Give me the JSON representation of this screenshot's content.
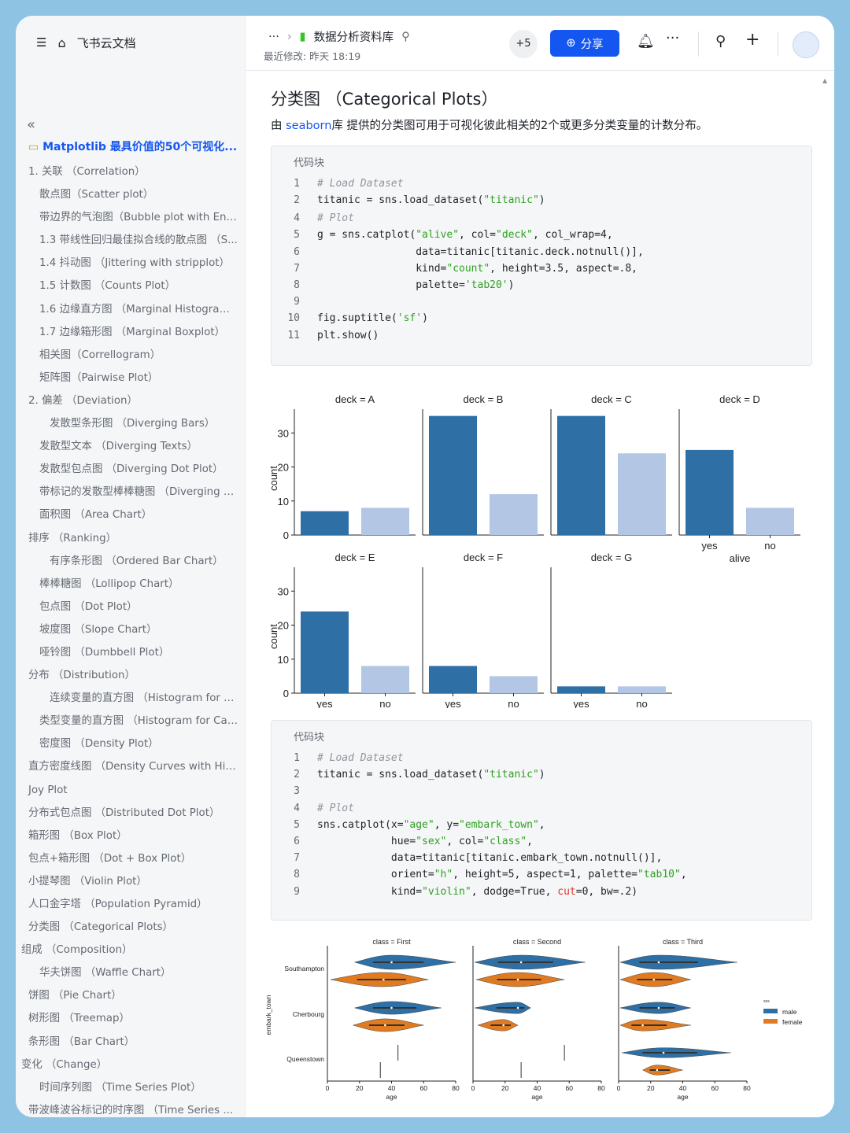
{
  "sidebar": {
    "app_title": "飞书云文档",
    "doc_title": "Matplotlib 最具价值的50个可视化...",
    "items": [
      {
        "label": "1. 关联 （Correlation）",
        "level": 1
      },
      {
        "label": "散点图（Scatter plot）",
        "level": 2
      },
      {
        "label": "带边界的气泡图（Bubble plot with Encir...",
        "level": 2
      },
      {
        "label": "1.3 带线性回归最佳拟合线的散点图 （S...",
        "level": 2
      },
      {
        "label": "1.4 抖动图 （Jittering with stripplot）",
        "level": 2
      },
      {
        "label": "1.5 计数图 （Counts Plot）",
        "level": 2
      },
      {
        "label": "1.6 边缘直方图 （Marginal Histogram）",
        "level": 2
      },
      {
        "label": "1.7 边缘箱形图 （Marginal Boxplot）",
        "level": 2
      },
      {
        "label": "相关图（Correllogram）",
        "level": 2
      },
      {
        "label": "矩阵图（Pairwise Plot）",
        "level": 2
      },
      {
        "label": "2. 偏差 （Deviation）",
        "level": 1
      },
      {
        "label": "发散型条形图 （Diverging Bars）",
        "level": 3
      },
      {
        "label": "发散型文本 （Diverging Texts）",
        "level": 2
      },
      {
        "label": "发散型包点图 （Diverging Dot Plot）",
        "level": 2
      },
      {
        "label": "带标记的发散型棒棒糖图 （Diverging Lo...",
        "level": 2
      },
      {
        "label": "面积图 （Area Chart）",
        "level": 2
      },
      {
        "label": "排序 （Ranking）",
        "level": 1
      },
      {
        "label": "有序条形图 （Ordered Bar Chart）",
        "level": 3
      },
      {
        "label": "棒棒糖图 （Lollipop Chart）",
        "level": 2
      },
      {
        "label": "包点图 （Dot Plot）",
        "level": 2
      },
      {
        "label": "坡度图 （Slope Chart）",
        "level": 2
      },
      {
        "label": "哑铃图 （Dumbbell Plot）",
        "level": 2
      },
      {
        "label": "分布 （Distribution）",
        "level": 1
      },
      {
        "label": "连续变量的直方图 （Histogram for Co...",
        "level": 3
      },
      {
        "label": "类型变量的直方图 （Histogram for Cate...",
        "level": 2
      },
      {
        "label": "密度图 （Density Plot）",
        "level": 2
      },
      {
        "label": "直方密度线图 （Density Curves with His...",
        "level": 1
      },
      {
        "label": "Joy Plot",
        "level": 1
      },
      {
        "label": "分布式包点图 （Distributed Dot Plot）",
        "level": 1
      },
      {
        "label": "箱形图 （Box Plot）",
        "level": 1
      },
      {
        "label": "包点+箱形图 （Dot + Box Plot）",
        "level": 1
      },
      {
        "label": "小提琴图 （Violin Plot）",
        "level": 1
      },
      {
        "label": "人口金字塔 （Population Pyramid）",
        "level": 1
      },
      {
        "label": "分类图 （Categorical Plots）",
        "level": 1
      },
      {
        "label": "组成 （Composition）",
        "level": 0
      },
      {
        "label": "华夫饼图 （Waffle Chart）",
        "level": 2
      },
      {
        "label": "饼图 （Pie Chart）",
        "level": 1
      },
      {
        "label": "树形图 （Treemap）",
        "level": 1
      },
      {
        "label": "条形图 （Bar Chart）",
        "level": 1
      },
      {
        "label": "变化 （Change）",
        "level": 0
      },
      {
        "label": "时间序列图 （Time Series Plot）",
        "level": 2
      },
      {
        "label": "带波峰波谷标记的时序图 （Time Series ...",
        "level": 1
      }
    ]
  },
  "header": {
    "more": "···",
    "doc_name": "数据分析资料库",
    "last_modified": "最近修改: 昨天 18:19",
    "collaborators": "+5",
    "share_label": "分享"
  },
  "content": {
    "heading": "分类图 （Categorical Plots）",
    "desc_pre": "由 ",
    "desc_link": "seaborn",
    "desc_post": "库 提供的分类图可用于可视化彼此相关的2个或更多分类变量的计数分布。",
    "code1": {
      "label": "代码块",
      "lines": [
        {
          "n": "1",
          "parts": [
            {
              "t": "# Load Dataset",
              "c": "cm"
            }
          ]
        },
        {
          "n": "2",
          "parts": [
            {
              "t": "titanic = sns.load_dataset(",
              "c": ""
            },
            {
              "t": "\"titanic\"",
              "c": "st"
            },
            {
              "t": ")",
              "c": ""
            }
          ]
        },
        {
          "n": "4",
          "parts": [
            {
              "t": "# Plot",
              "c": "cm"
            }
          ]
        },
        {
          "n": "5",
          "parts": [
            {
              "t": "g = sns.catplot(",
              "c": ""
            },
            {
              "t": "\"alive\"",
              "c": "st"
            },
            {
              "t": ", col=",
              "c": ""
            },
            {
              "t": "\"deck\"",
              "c": "st"
            },
            {
              "t": ", col_wrap=4,",
              "c": ""
            }
          ]
        },
        {
          "n": "6",
          "parts": [
            {
              "t": "                data=titanic[titanic.deck.notnull()],",
              "c": ""
            }
          ]
        },
        {
          "n": "7",
          "parts": [
            {
              "t": "                kind=",
              "c": ""
            },
            {
              "t": "\"count\"",
              "c": "st"
            },
            {
              "t": ", height=3.5, aspect=.8,",
              "c": ""
            }
          ]
        },
        {
          "n": "8",
          "parts": [
            {
              "t": "                palette=",
              "c": ""
            },
            {
              "t": "'tab20'",
              "c": "st"
            },
            {
              "t": ")",
              "c": ""
            }
          ]
        },
        {
          "n": "9",
          "parts": [
            {
              "t": "",
              "c": ""
            }
          ]
        },
        {
          "n": "10",
          "parts": [
            {
              "t": "fig.suptitle(",
              "c": ""
            },
            {
              "t": "'sf'",
              "c": "st"
            },
            {
              "t": ")",
              "c": ""
            }
          ]
        },
        {
          "n": "11",
          "parts": [
            {
              "t": "plt.show()",
              "c": ""
            }
          ]
        }
      ]
    },
    "code2": {
      "label": "代码块",
      "lines": [
        {
          "n": "1",
          "parts": [
            {
              "t": "# Load Dataset",
              "c": "cm"
            }
          ]
        },
        {
          "n": "2",
          "parts": [
            {
              "t": "titanic = sns.load_dataset(",
              "c": ""
            },
            {
              "t": "\"titanic\"",
              "c": "st"
            },
            {
              "t": ")",
              "c": ""
            }
          ]
        },
        {
          "n": "3",
          "parts": [
            {
              "t": "",
              "c": ""
            }
          ]
        },
        {
          "n": "4",
          "parts": [
            {
              "t": "# Plot",
              "c": "cm"
            }
          ]
        },
        {
          "n": "5",
          "parts": [
            {
              "t": "sns.catplot(x=",
              "c": ""
            },
            {
              "t": "\"age\"",
              "c": "st"
            },
            {
              "t": ", y=",
              "c": ""
            },
            {
              "t": "\"embark_town\"",
              "c": "st"
            },
            {
              "t": ",",
              "c": ""
            }
          ]
        },
        {
          "n": "6",
          "parts": [
            {
              "t": "            hue=",
              "c": ""
            },
            {
              "t": "\"sex\"",
              "c": "st"
            },
            {
              "t": ", col=",
              "c": ""
            },
            {
              "t": "\"class\"",
              "c": "st"
            },
            {
              "t": ",",
              "c": ""
            }
          ]
        },
        {
          "n": "7",
          "parts": [
            {
              "t": "            data=titanic[titanic.embark_town.notnull()],",
              "c": ""
            }
          ]
        },
        {
          "n": "8",
          "parts": [
            {
              "t": "            orient=",
              "c": ""
            },
            {
              "t": "\"h\"",
              "c": "st"
            },
            {
              "t": ", height=5, aspect=1, palette=",
              "c": ""
            },
            {
              "t": "\"tab10\"",
              "c": "st"
            },
            {
              "t": ",",
              "c": ""
            }
          ]
        },
        {
          "n": "9",
          "parts": [
            {
              "t": "            kind=",
              "c": ""
            },
            {
              "t": "\"violin\"",
              "c": "st"
            },
            {
              "t": ", dodge=True, ",
              "c": ""
            },
            {
              "t": "cut",
              "c": "kw"
            },
            {
              "t": "=0, bw=.2)",
              "c": ""
            }
          ]
        }
      ]
    }
  },
  "chart_data": [
    {
      "type": "bar",
      "title": "",
      "ylabel": "count",
      "xlabel": "alive",
      "categories": [
        "yes",
        "no"
      ],
      "ylim": [
        0,
        37
      ],
      "yticks": [
        0,
        10,
        20,
        30
      ],
      "colors": [
        "#2e6fa6",
        "#b3c6e4"
      ],
      "panels": [
        {
          "title": "deck = A",
          "values": [
            7,
            8
          ]
        },
        {
          "title": "deck = B",
          "values": [
            35,
            12
          ]
        },
        {
          "title": "deck = C",
          "values": [
            35,
            24
          ]
        },
        {
          "title": "deck = D",
          "values": [
            25,
            8
          ]
        },
        {
          "title": "deck = E",
          "values": [
            24,
            8
          ]
        },
        {
          "title": "deck = F",
          "values": [
            8,
            5
          ]
        },
        {
          "title": "deck = G",
          "values": [
            2,
            2
          ]
        }
      ]
    },
    {
      "type": "violin",
      "xlabel": "age",
      "ylabel": "embark_town",
      "xticks": [
        0,
        20,
        40,
        60,
        80
      ],
      "xlim": [
        0,
        80
      ],
      "categories": [
        "Southampton",
        "Cherbourg",
        "Queenstown"
      ],
      "legend": {
        "title": "sex",
        "entries": [
          "male",
          "female"
        ]
      },
      "colors": [
        "#2e6fa6",
        "#e07b22"
      ],
      "panels": [
        {
          "title": "class = First",
          "violins": [
            {
              "town": 0,
              "sex": 0,
              "min": 17,
              "max": 80,
              "med": 40,
              "width": 1.0
            },
            {
              "town": 0,
              "sex": 1,
              "min": 2,
              "max": 63,
              "med": 35,
              "width": 1.0
            },
            {
              "town": 1,
              "sex": 0,
              "min": 17,
              "max": 71,
              "med": 40,
              "width": 0.9
            },
            {
              "town": 1,
              "sex": 1,
              "min": 16,
              "max": 60,
              "med": 36,
              "width": 0.9
            },
            {
              "town": 2,
              "sex": 0,
              "min": 44,
              "max": 44,
              "med": 44,
              "width": 0
            },
            {
              "town": 2,
              "sex": 1,
              "min": 33,
              "max": 33,
              "med": 33,
              "width": 0
            }
          ]
        },
        {
          "title": "class = Second",
          "violins": [
            {
              "town": 0,
              "sex": 0,
              "min": 1,
              "max": 70,
              "med": 30,
              "width": 1.0
            },
            {
              "town": 0,
              "sex": 1,
              "min": 2,
              "max": 57,
              "med": 28,
              "width": 1.0
            },
            {
              "town": 1,
              "sex": 0,
              "min": 1,
              "max": 36,
              "med": 28,
              "width": 0.8
            },
            {
              "town": 1,
              "sex": 1,
              "min": 3,
              "max": 28,
              "med": 19,
              "width": 0.8
            },
            {
              "town": 2,
              "sex": 0,
              "min": 57,
              "max": 57,
              "med": 57,
              "width": 0
            },
            {
              "town": 2,
              "sex": 1,
              "min": 30,
              "max": 30,
              "med": 30,
              "width": 0
            }
          ]
        },
        {
          "title": "class = Third",
          "violins": [
            {
              "town": 0,
              "sex": 0,
              "min": 1,
              "max": 74,
              "med": 25,
              "width": 1.0
            },
            {
              "town": 0,
              "sex": 1,
              "min": 1,
              "max": 45,
              "med": 22,
              "width": 1.0
            },
            {
              "town": 1,
              "sex": 0,
              "min": 1,
              "max": 45,
              "med": 25,
              "width": 0.8
            },
            {
              "town": 1,
              "sex": 1,
              "min": 1,
              "max": 45,
              "med": 15,
              "width": 0.8
            },
            {
              "town": 2,
              "sex": 0,
              "min": 2,
              "max": 70,
              "med": 28,
              "width": 0.7
            },
            {
              "town": 2,
              "sex": 1,
              "min": 15,
              "max": 40,
              "med": 24,
              "width": 0.7
            }
          ]
        }
      ]
    }
  ]
}
